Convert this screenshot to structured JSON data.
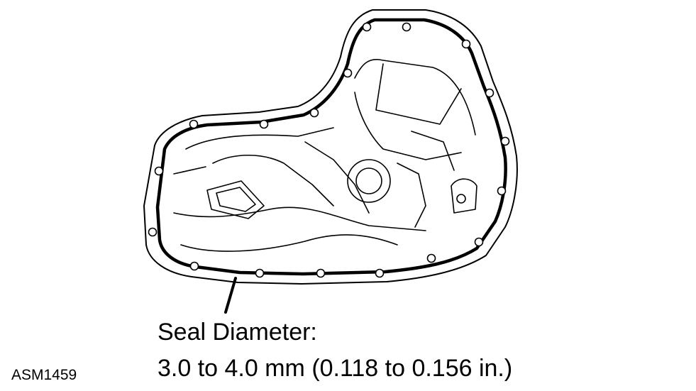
{
  "caption": {
    "line1": "Seal Diameter:",
    "line2": "3.0 to 4.0 mm (0.118 to 0.156 in.)"
  },
  "figure_id": "ASM1459",
  "colors": {
    "line": "#000000",
    "background": "#ffffff"
  }
}
